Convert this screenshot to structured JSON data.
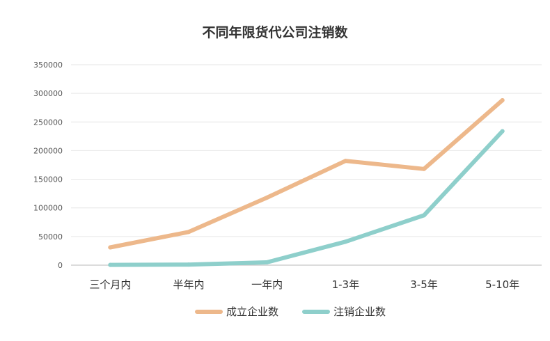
{
  "chart_data": {
    "type": "line",
    "title": "不同年限货代公司注销数",
    "categories": [
      "三个月内",
      "半年内",
      "一年内",
      "1-3年",
      "3-5年",
      "5-10年"
    ],
    "ylim": [
      0,
      350000
    ],
    "yticks": [
      0,
      50000,
      100000,
      150000,
      200000,
      250000,
      300000,
      350000
    ],
    "grid": true,
    "legend_position": "bottom-center",
    "series": [
      {
        "name": "成立企业数",
        "color": "#EDB88B",
        "values": [
          31000,
          58000,
          118000,
          182000,
          168000,
          288000
        ]
      },
      {
        "name": "注销企业数",
        "color": "#8ECFCB",
        "values": [
          500,
          1000,
          5000,
          41000,
          87000,
          234000
        ]
      }
    ]
  }
}
